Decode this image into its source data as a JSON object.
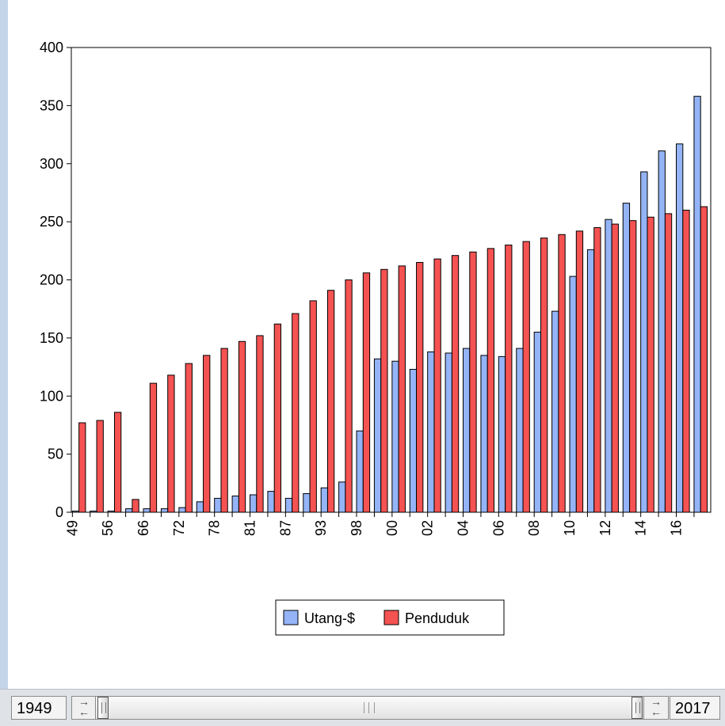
{
  "chart_data": {
    "type": "bar",
    "categories": [
      "49",
      "",
      "56",
      "",
      "66",
      "",
      "72",
      "",
      "78",
      "",
      "81",
      "",
      "87",
      "",
      "93",
      "",
      "98",
      "",
      "00",
      "",
      "02",
      "",
      "04",
      "",
      "06",
      "",
      "08",
      "",
      "10",
      "",
      "12",
      "",
      "14",
      "",
      "16",
      ""
    ],
    "series": [
      {
        "name": "Utang-$",
        "color": "#94b4f7",
        "values": [
          1,
          1,
          1,
          3,
          3,
          3,
          4,
          9,
          12,
          14,
          15,
          18,
          12,
          16,
          21,
          26,
          70,
          132,
          130,
          123,
          138,
          137,
          141,
          135,
          134,
          141,
          155,
          173,
          203,
          226,
          252,
          266,
          293,
          311,
          317,
          358
        ]
      },
      {
        "name": "Penduduk",
        "color": "#f55252",
        "values": [
          77,
          79,
          86,
          11,
          111,
          118,
          128,
          135,
          141,
          147,
          152,
          162,
          171,
          182,
          191,
          200,
          206,
          209,
          212,
          215,
          218,
          221,
          224,
          227,
          230,
          233,
          236,
          239,
          242,
          245,
          248,
          251,
          254,
          257,
          260,
          263
        ]
      }
    ],
    "y_ticks": [
      "0",
      "50",
      "100",
      "150",
      "200",
      "250",
      "300",
      "350",
      "400"
    ],
    "ylim": [
      0,
      400
    ],
    "legend_position": "bottom-center"
  },
  "range_bar": {
    "start_label": "1949",
    "end_label": "2017"
  }
}
